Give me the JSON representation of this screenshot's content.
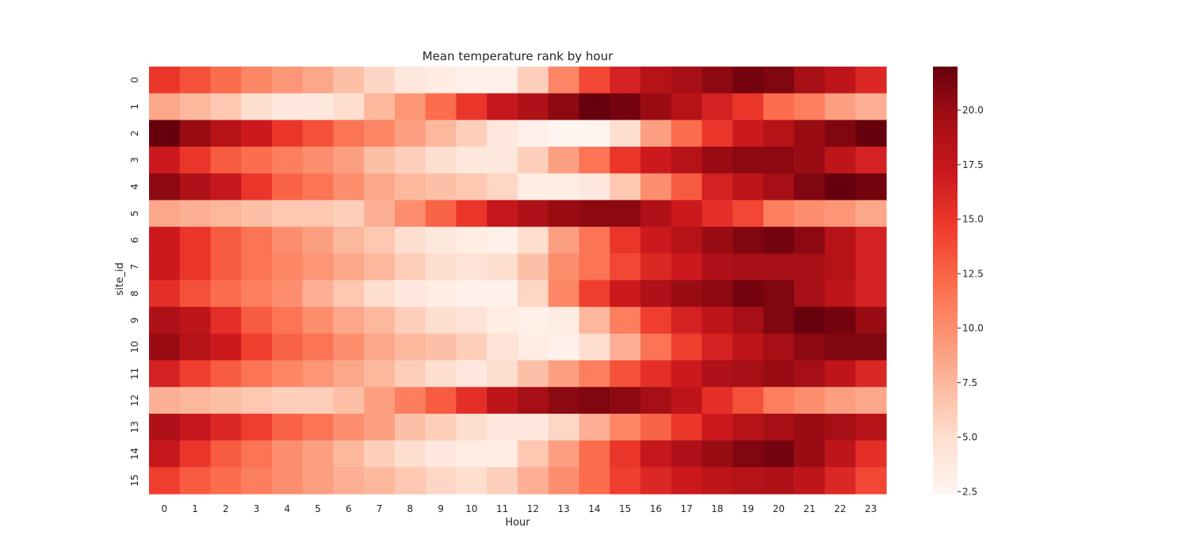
{
  "chart_data": {
    "type": "heatmap",
    "title": "Mean temperature rank by hour",
    "xlabel": "Hour",
    "ylabel": "site_id",
    "x_categories": [
      "0",
      "1",
      "2",
      "3",
      "4",
      "5",
      "6",
      "7",
      "8",
      "9",
      "10",
      "11",
      "12",
      "13",
      "14",
      "15",
      "16",
      "17",
      "18",
      "19",
      "20",
      "21",
      "22",
      "23"
    ],
    "y_categories": [
      "0",
      "1",
      "2",
      "3",
      "4",
      "5",
      "6",
      "7",
      "8",
      "9",
      "10",
      "11",
      "12",
      "13",
      "14",
      "15"
    ],
    "colorscale": "Reds",
    "vmin": 2.4,
    "vmax": 22.0,
    "colorbar_ticks": [
      2.5,
      5.0,
      7.5,
      10.0,
      12.5,
      15.0,
      17.5,
      20.0
    ],
    "colorbar_tick_labels": [
      "2.5",
      "5.0",
      "7.5",
      "10.0",
      "12.5",
      "15.0",
      "17.5",
      "20.0"
    ],
    "values": [
      [
        15.0,
        13.5,
        12.0,
        10.5,
        9.5,
        8.5,
        7.0,
        5.5,
        4.0,
        3.5,
        3.0,
        3.0,
        6.0,
        10.5,
        14.0,
        16.5,
        18.5,
        19.5,
        20.5,
        21.5,
        21.0,
        19.5,
        18.0,
        16.0
      ],
      [
        8.5,
        7.5,
        6.5,
        5.0,
        4.0,
        4.0,
        5.0,
        7.5,
        9.5,
        12.0,
        15.0,
        17.5,
        19.0,
        20.5,
        22.0,
        21.5,
        20.0,
        18.5,
        16.5,
        15.0,
        12.0,
        11.0,
        9.0,
        8.0
      ],
      [
        22.0,
        20.0,
        18.5,
        17.0,
        15.0,
        13.5,
        11.5,
        10.5,
        9.0,
        7.5,
        6.0,
        4.0,
        3.0,
        2.5,
        2.5,
        5.0,
        9.0,
        12.0,
        15.0,
        17.0,
        18.5,
        20.0,
        21.0,
        22.0
      ],
      [
        17.0,
        15.0,
        13.0,
        12.0,
        11.0,
        10.0,
        9.0,
        7.0,
        6.0,
        5.0,
        4.0,
        4.0,
        6.0,
        9.0,
        11.5,
        15.0,
        17.0,
        18.5,
        20.0,
        20.5,
        20.5,
        20.0,
        18.0,
        16.5
      ],
      [
        20.5,
        19.0,
        17.5,
        15.0,
        12.5,
        11.5,
        10.0,
        8.5,
        7.5,
        7.0,
        6.5,
        5.5,
        3.5,
        3.5,
        4.0,
        6.5,
        10.0,
        13.0,
        16.5,
        18.0,
        19.5,
        21.0,
        22.0,
        21.5
      ],
      [
        8.5,
        8.0,
        7.5,
        7.0,
        6.5,
        6.5,
        6.0,
        8.0,
        10.0,
        12.5,
        15.0,
        17.5,
        19.0,
        20.0,
        20.5,
        20.5,
        19.0,
        17.0,
        15.5,
        14.0,
        11.0,
        10.0,
        9.5,
        8.5
      ],
      [
        17.0,
        15.0,
        13.0,
        11.5,
        10.0,
        9.0,
        7.5,
        6.5,
        5.0,
        4.0,
        3.5,
        3.0,
        5.0,
        9.0,
        11.5,
        15.0,
        17.0,
        18.5,
        20.0,
        21.0,
        21.5,
        20.5,
        18.5,
        16.5
      ],
      [
        17.0,
        15.0,
        13.0,
        11.5,
        10.5,
        9.5,
        8.5,
        7.5,
        6.0,
        5.0,
        4.5,
        5.0,
        7.0,
        10.0,
        11.5,
        14.0,
        16.0,
        17.0,
        19.0,
        19.5,
        19.5,
        19.5,
        18.5,
        16.5
      ],
      [
        15.5,
        13.5,
        12.0,
        11.0,
        10.0,
        8.0,
        6.5,
        5.0,
        4.0,
        3.5,
        3.0,
        3.0,
        5.5,
        10.5,
        14.5,
        17.0,
        19.0,
        20.0,
        20.5,
        21.5,
        21.0,
        19.5,
        18.0,
        16.5
      ],
      [
        19.0,
        18.0,
        15.5,
        13.0,
        11.5,
        10.0,
        8.5,
        7.5,
        6.0,
        5.0,
        4.5,
        3.5,
        3.0,
        3.5,
        7.5,
        11.0,
        14.5,
        16.5,
        18.0,
        19.5,
        21.0,
        22.0,
        21.5,
        20.0
      ],
      [
        20.0,
        18.5,
        17.0,
        14.5,
        12.5,
        11.5,
        10.0,
        8.5,
        7.5,
        7.0,
        6.0,
        4.5,
        3.5,
        3.0,
        5.0,
        8.0,
        11.5,
        14.5,
        16.5,
        18.0,
        19.5,
        20.5,
        21.0,
        21.0
      ],
      [
        16.5,
        14.5,
        13.0,
        11.5,
        10.5,
        9.5,
        8.5,
        7.5,
        6.0,
        5.0,
        4.0,
        5.0,
        7.0,
        9.0,
        11.0,
        13.5,
        15.5,
        17.0,
        19.0,
        19.5,
        20.0,
        19.5,
        18.0,
        16.0
      ],
      [
        8.0,
        7.5,
        7.0,
        6.5,
        6.0,
        6.0,
        7.0,
        9.0,
        11.0,
        13.0,
        15.5,
        18.0,
        19.5,
        20.5,
        21.0,
        20.5,
        19.5,
        18.0,
        15.5,
        13.5,
        11.0,
        10.0,
        9.0,
        8.5
      ],
      [
        19.0,
        17.5,
        16.0,
        14.5,
        12.5,
        11.5,
        10.0,
        9.0,
        7.0,
        6.0,
        5.0,
        4.0,
        4.0,
        5.5,
        8.0,
        10.5,
        12.5,
        15.0,
        17.0,
        18.5,
        19.5,
        20.0,
        19.5,
        18.5
      ],
      [
        17.5,
        15.0,
        13.0,
        11.5,
        10.0,
        9.0,
        7.5,
        6.0,
        5.0,
        4.0,
        3.5,
        3.5,
        6.5,
        9.0,
        12.0,
        15.0,
        17.5,
        19.0,
        20.0,
        21.0,
        21.5,
        20.0,
        18.0,
        15.5
      ],
      [
        14.5,
        13.0,
        12.0,
        11.0,
        10.0,
        9.0,
        8.0,
        7.5,
        6.5,
        5.5,
        5.0,
        6.0,
        8.0,
        10.0,
        12.0,
        14.5,
        16.0,
        17.0,
        18.0,
        18.5,
        19.0,
        18.0,
        16.0,
        14.0
      ]
    ]
  }
}
